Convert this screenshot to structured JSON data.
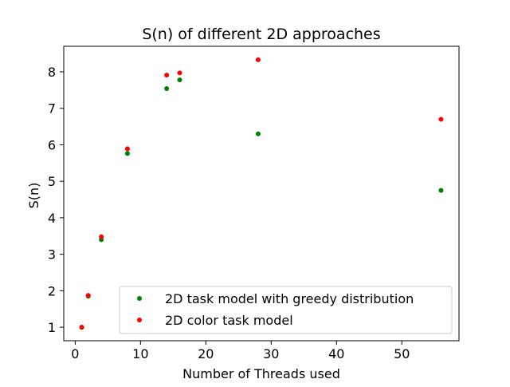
{
  "chart_data": {
    "type": "scatter",
    "title": "S(n) of different 2D approaches",
    "xlabel": "Number of Threads used",
    "ylabel": "S(n)",
    "xlim": [
      -1.75,
      58.75
    ],
    "ylim": [
      0.63,
      8.7
    ],
    "xticks": [
      0,
      10,
      20,
      30,
      40,
      50
    ],
    "yticks": [
      1,
      2,
      3,
      4,
      5,
      6,
      7,
      8
    ],
    "grid": false,
    "legend_position": "lower right",
    "series": [
      {
        "name": "2D task model with greedy distribution",
        "color": "#008000",
        "x": [
          1,
          2,
          4,
          8,
          14,
          16,
          28,
          56
        ],
        "y": [
          1.0,
          1.85,
          3.4,
          5.76,
          7.54,
          7.78,
          6.3,
          4.75
        ]
      },
      {
        "name": "2D color task model",
        "color": "#ff0000",
        "x": [
          1,
          2,
          4,
          8,
          14,
          16,
          28,
          56
        ],
        "y": [
          1.0,
          1.87,
          3.48,
          5.89,
          7.91,
          7.97,
          8.33,
          6.7
        ]
      }
    ]
  }
}
